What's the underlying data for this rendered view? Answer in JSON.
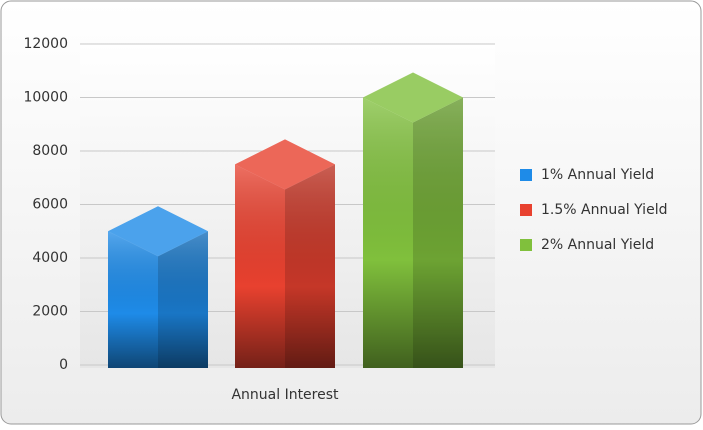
{
  "chart_data": {
    "type": "bar3d",
    "categories": [
      "Annual Interest"
    ],
    "series": [
      {
        "name": "1% Annual Yield",
        "color": "#1e8be8",
        "values": [
          5000
        ]
      },
      {
        "name": "1.5% Annual Yield",
        "color": "#e8412f",
        "values": [
          7500
        ]
      },
      {
        "name": "2% Annual Yield",
        "color": "#80c03c",
        "values": [
          10000
        ]
      }
    ],
    "ylim": [
      0,
      12000
    ],
    "yticks": [
      0,
      2000,
      4000,
      6000,
      8000,
      10000,
      12000
    ],
    "grid": true,
    "legend": "right"
  }
}
